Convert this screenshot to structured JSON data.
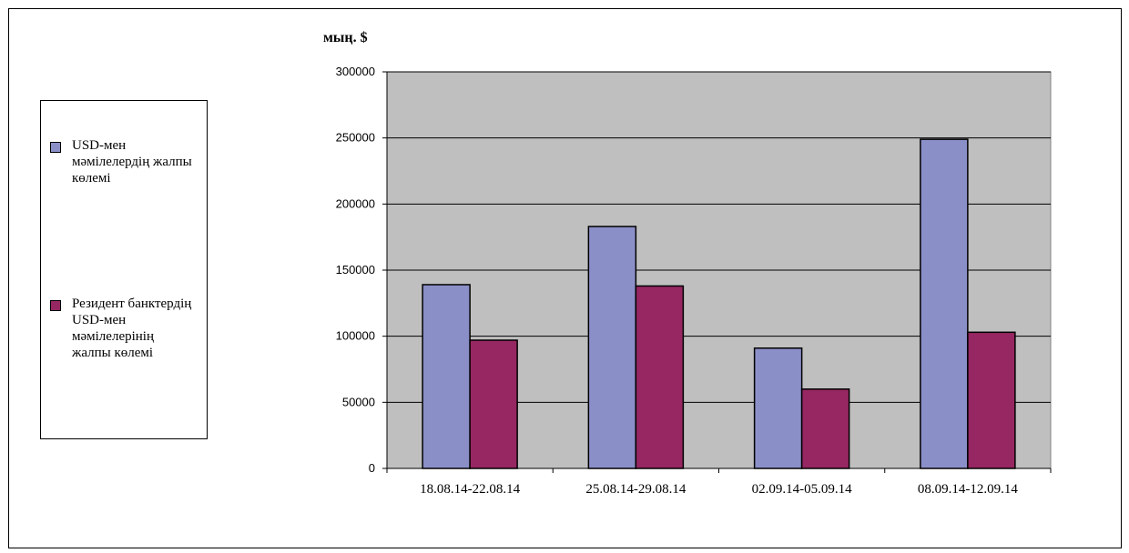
{
  "chart_data": {
    "type": "bar",
    "unit_label": "мың. $",
    "categories": [
      "18.08.14-22.08.14",
      "25.08.14-29.08.14",
      "02.09.14-05.09.14",
      "08.09.14-12.09.14"
    ],
    "series": [
      {
        "name": "USD-мен мәмілелердің жалпы көлемі",
        "color": "#8b8fc8",
        "values": [
          139000,
          183000,
          91000,
          249000
        ]
      },
      {
        "name": "Резидент банктердің USD-мен мәмілелерінің жалпы көлемі",
        "color": "#962762",
        "values": [
          97000,
          138000,
          60000,
          103000
        ]
      }
    ],
    "ylim": [
      0,
      300000
    ],
    "yticks": [
      "0",
      "50000",
      "100000",
      "150000",
      "200000",
      "250000",
      "300000"
    ],
    "plot_background": "#bfbfbf",
    "grid": true,
    "legend_position": "left"
  }
}
